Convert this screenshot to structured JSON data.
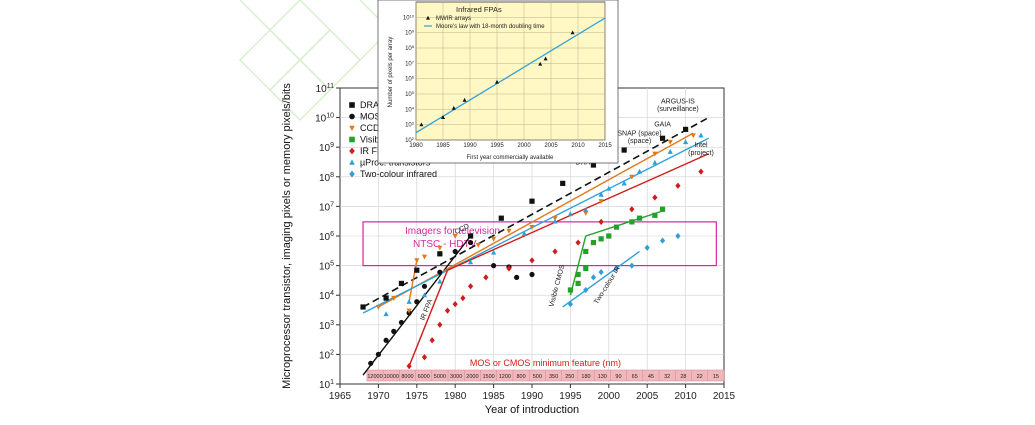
{
  "chart_data": [
    {
      "type": "scatter",
      "scale": "log-y",
      "title": "",
      "xlabel": "Year of introduction",
      "ylabel": "Microprocessor transistor, imaging pixels or memory pixels/bits",
      "xlim": [
        1965,
        2015
      ],
      "ylim": [
        10,
        100000000000
      ],
      "x_ticks": [
        "1965",
        "1970",
        "1975",
        "1980",
        "1985",
        "1990",
        "1995",
        "2000",
        "2005",
        "2010",
        "2015"
      ],
      "y_ticks": [
        {
          "base": "10",
          "exp": "1"
        },
        {
          "base": "10",
          "exp": "2"
        },
        {
          "base": "10",
          "exp": "3"
        },
        {
          "base": "10",
          "exp": "4"
        },
        {
          "base": "10",
          "exp": "5"
        },
        {
          "base": "10",
          "exp": "6"
        },
        {
          "base": "10",
          "exp": "7"
        },
        {
          "base": "10",
          "exp": "8"
        },
        {
          "base": "10",
          "exp": "9"
        },
        {
          "base": "10",
          "exp": "10"
        },
        {
          "base": "10",
          "exp": "11"
        }
      ],
      "legend_position": "top-left",
      "series": [
        {
          "name": "DRAM",
          "marker": "square",
          "color": "#111111",
          "points": [
            [
              1968,
              4000
            ],
            [
              1971,
              8000
            ],
            [
              1973,
              25000
            ],
            [
              1975,
              70000
            ],
            [
              1978,
              250000
            ],
            [
              1982,
              1000000
            ],
            [
              1986,
              4000000
            ],
            [
              1990,
              15000000
            ],
            [
              1994,
              60000000
            ],
            [
              1998,
              250000000
            ],
            [
              2002,
              800000000
            ],
            [
              2007,
              2000000000
            ],
            [
              2010,
              4000000000
            ]
          ]
        },
        {
          "name": "MOS",
          "marker": "circle",
          "color": "#111111",
          "points": [
            [
              1969,
              50
            ],
            [
              1970,
              100
            ],
            [
              1971,
              300
            ],
            [
              1972,
              600
            ],
            [
              1973,
              1200
            ],
            [
              1974,
              2500
            ],
            [
              1975,
              6000
            ],
            [
              1976,
              20000
            ],
            [
              1978,
              60000
            ],
            [
              1980,
              300000
            ],
            [
              1982,
              600000
            ],
            [
              1985,
              100000
            ],
            [
              1987,
              90000
            ],
            [
              1988,
              40000
            ],
            [
              1990,
              50000
            ]
          ]
        },
        {
          "name": "CCD",
          "marker": "triangle-down",
          "color": "#e27a1c",
          "points": [
            [
              1970,
              4000
            ],
            [
              1972,
              8000
            ],
            [
              1974,
              3000
            ],
            [
              1975,
              150000
            ],
            [
              1976,
              200000
            ],
            [
              1978,
              400000
            ],
            [
              1980,
              1000000
            ],
            [
              1983,
              500000
            ],
            [
              1985,
              800000
            ],
            [
              1987,
              1500000
            ],
            [
              1990,
              2000000
            ],
            [
              1993,
              4000000
            ],
            [
              1997,
              6000000
            ],
            [
              1999,
              15000000
            ],
            [
              2003,
              100000000
            ],
            [
              2006,
              600000000
            ],
            [
              2008,
              1500000000
            ],
            [
              2011,
              2500000000
            ]
          ]
        },
        {
          "name": "Visible CMOS",
          "marker": "square",
          "color": "#24a02c",
          "points": [
            [
              1995,
              15000
            ],
            [
              1996,
              25000
            ],
            [
              1996,
              50000
            ],
            [
              1997,
              80000
            ],
            [
              1997,
              300000
            ],
            [
              1998,
              600000
            ],
            [
              1999,
              800000
            ],
            [
              2000,
              1000000
            ],
            [
              2001,
              2000000
            ],
            [
              2003,
              3000000
            ],
            [
              2004,
              4000000
            ],
            [
              2006,
              5000000
            ],
            [
              2007,
              8000000
            ]
          ]
        },
        {
          "name": "IR FPA",
          "marker": "diamond",
          "color": "#d01c1c",
          "points": [
            [
              1974,
              40
            ],
            [
              1976,
              80
            ],
            [
              1977,
              300
            ],
            [
              1978,
              1000
            ],
            [
              1979,
              3000
            ],
            [
              1980,
              5000
            ],
            [
              1981,
              8000
            ],
            [
              1982,
              20000
            ],
            [
              1984,
              40000
            ],
            [
              1987,
              80000
            ],
            [
              1990,
              150000
            ],
            [
              1993,
              300000
            ],
            [
              1996,
              600000
            ],
            [
              1999,
              3000000
            ],
            [
              2003,
              8000000
            ],
            [
              2006,
              20000000
            ],
            [
              2009,
              50000000
            ],
            [
              2012,
              150000000
            ]
          ]
        },
        {
          "name": "µProc. transistors",
          "marker": "triangle-up",
          "color": "#2ea0d8",
          "points": [
            [
              1971,
              2300
            ],
            [
              1974,
              6000
            ],
            [
              1976,
              10000
            ],
            [
              1978,
              29000
            ],
            [
              1982,
              130000
            ],
            [
              1985,
              275000
            ],
            [
              1989,
              1200000
            ],
            [
              1993,
              3100000
            ],
            [
              1995,
              5500000
            ],
            [
              1997,
              7500000
            ],
            [
              1999,
              25000000
            ],
            [
              2000,
              40000000
            ],
            [
              2002,
              60000000
            ],
            [
              2004,
              150000000
            ],
            [
              2006,
              300000000
            ],
            [
              2008,
              700000000
            ],
            [
              2010,
              1500000000
            ],
            [
              2012,
              2500000000
            ]
          ]
        },
        {
          "name": "Two-colour infrared",
          "marker": "diamond",
          "color": "#2ea0d8",
          "points": [
            [
              1995,
              5000
            ],
            [
              1997,
              15000
            ],
            [
              1998,
              40000
            ],
            [
              1999,
              60000
            ],
            [
              2001,
              80000
            ],
            [
              2003,
              100000
            ],
            [
              2005,
              400000
            ],
            [
              2007,
              700000
            ],
            [
              2009,
              1000000
            ]
          ]
        }
      ],
      "trend_lines": [
        {
          "label": "DRAM",
          "color": "#111111",
          "style": "dashed",
          "from": [
            1968,
            4000
          ],
          "to": [
            2013,
            10000000000
          ]
        },
        {
          "label": "",
          "color": "#111111",
          "style": "solid",
          "from": [
            1968,
            20
          ],
          "to": [
            1982,
            1000000
          ]
        },
        {
          "label": "CCD",
          "color": "#e27a1c",
          "style": "solid",
          "from": [
            1970,
            4000
          ],
          "to": [
            2011,
            3000000000
          ]
        },
        {
          "label": "",
          "color": "#e27a1c",
          "style": "solid",
          "from": [
            1974,
            6000
          ],
          "to": [
            1975,
            150000
          ]
        },
        {
          "label": "",
          "color": "#2ea0d8",
          "style": "solid",
          "from": [
            1968,
            2500
          ],
          "to": [
            2013,
            2000000000
          ]
        },
        {
          "label": "IR FPA",
          "color": "#d01c1c",
          "style": "solid",
          "from": [
            1974,
            40
          ],
          "to": [
            1979,
            70000
          ]
        },
        {
          "label": "",
          "color": "#d01c1c",
          "style": "solid",
          "from": [
            1979,
            70000
          ],
          "to": [
            2013,
            600000000
          ]
        },
        {
          "label": "Visible CMOS",
          "color": "#24a02c",
          "style": "solid",
          "from": [
            1995,
            10000
          ],
          "to": [
            1997,
            1000000
          ]
        },
        {
          "label": "",
          "color": "#24a02c",
          "style": "solid",
          "from": [
            1997,
            1000000
          ],
          "to": [
            2007,
            7000000
          ]
        },
        {
          "label": "Two-colour IR",
          "color": "#2ea0d8",
          "style": "solid",
          "from": [
            1994,
            4000
          ],
          "to": [
            2004,
            300000
          ]
        }
      ],
      "annotations": [
        {
          "text": "ARGUS-IS",
          "x": 2009,
          "y": 30000000000
        },
        {
          "text": "(surveillance)",
          "x": 2009,
          "y": 17000000000
        },
        {
          "text": "GAIA",
          "x": 2007,
          "y": 5000000000
        },
        {
          "text": "SNAP (space)",
          "x": 2004,
          "y": 2500000000
        },
        {
          "text": "(space)",
          "x": 2004,
          "y": 1400000000
        },
        {
          "text": "Intel",
          "x": 2012,
          "y": 1000000000
        },
        {
          "text": "(project)",
          "x": 2012,
          "y": 550000000
        },
        {
          "text": "DRAM",
          "x": 1997,
          "y": 260000000
        }
      ],
      "highlight_box": {
        "label_line1": "Imagers for television",
        "label_line2": "NTSC - HDTV",
        "color": "#d2289c",
        "x": [
          1968,
          2014
        ],
        "y": [
          100000,
          3000000
        ]
      },
      "feature_bar": {
        "label": "MOS or CMOS minimum feature (nm)",
        "values": [
          "12000",
          "10000",
          "8000",
          "6000",
          "5000",
          "3000",
          "2000",
          "1500",
          "1200",
          "800",
          "500",
          "350",
          "250",
          "180",
          "130",
          "90",
          "65",
          "45",
          "32",
          "28",
          "22",
          "15"
        ]
      }
    },
    {
      "type": "scatter",
      "scale": "log-y",
      "title": "Infrared FPAs",
      "xlabel": "First year commercially available",
      "ylabel": "Number of pixels per array",
      "xlim": [
        1980,
        2015
      ],
      "ylim": [
        100,
        100000000000
      ],
      "x_ticks": [
        "1980",
        "1985",
        "1990",
        "1995",
        "2000",
        "2005",
        "2010",
        "2015"
      ],
      "y_ticks": [
        {
          "base": "10",
          "exp": "2"
        },
        {
          "base": "10",
          "exp": "3"
        },
        {
          "base": "10",
          "exp": "4"
        },
        {
          "base": "10",
          "exp": "5"
        },
        {
          "base": "10",
          "exp": "6"
        },
        {
          "base": "10",
          "exp": "7"
        },
        {
          "base": "10",
          "exp": "8"
        },
        {
          "base": "10",
          "exp": "9"
        },
        {
          "base": "10",
          "exp": "10"
        }
      ],
      "legend_position": "top-left",
      "series": [
        {
          "name": "MWIR arrays",
          "marker": "triangle-up",
          "color": "#111111",
          "points": [
            [
              1981,
              1000
            ],
            [
              1985,
              3000
            ],
            [
              1987,
              12000
            ],
            [
              1989,
              40000
            ],
            [
              1995,
              600000
            ],
            [
              2003,
              9000000
            ],
            [
              2004,
              20000000
            ],
            [
              2009,
              1000000000
            ]
          ]
        },
        {
          "name": "Moore's law with 18-month doubling time",
          "marker": "line",
          "color": "#2ea0d8",
          "points": [
            [
              1980,
              300
            ],
            [
              2015,
              9000000000
            ]
          ]
        }
      ]
    }
  ]
}
